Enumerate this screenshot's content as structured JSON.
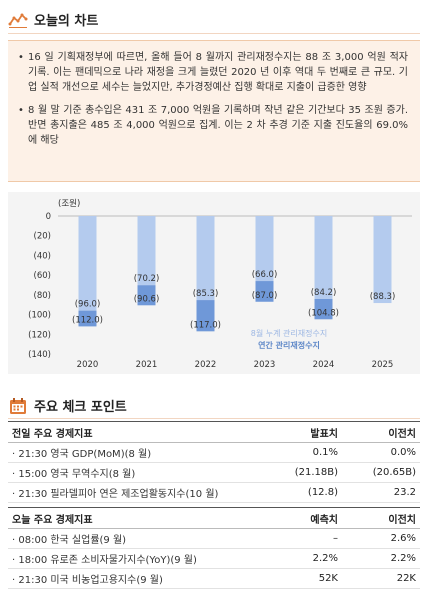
{
  "chart_section": {
    "title": "오늘의 차트",
    "icon": "line-chart-icon",
    "bullets": [
      "16 일 기획재정부에 따르면, 올해 들어 8 월까지 관리재정수지는 88 조 3,000 억원 적자 기록. 이는 팬데믹으로 나라 재정을 크게 늘렸던 2020 년 이후 역대 두 번째로 큰 규모. 기업 실적 개선으로 세수는 늘었지만, 추가경정예산 집행 확대로 지출이 급증한 영향",
      "8 월 말 기준 총수입은 431 조 7,000 억원을 기록하며 작년 같은 기간보다 35 조원 증가. 반면 총지출은 485 조 4,000 억원으로 집계. 이는 2 차 추경 기준 지출 진도율의 69.0%에 해당"
    ]
  },
  "chart_data": {
    "type": "bar",
    "unit_label": "(조원)",
    "categories": [
      "2020",
      "2021",
      "2022",
      "2023",
      "2024",
      "2025"
    ],
    "series": [
      {
        "name": "연간 관리재정수지",
        "values": [
          -112.0,
          -90.6,
          -117.0,
          -87.0,
          -104.8,
          null
        ],
        "color": "#6f98d8"
      },
      {
        "name": "8월 누계 관리재정수지",
        "values": [
          -96.0,
          -70.2,
          -85.3,
          -66.0,
          -84.2,
          -88.3
        ],
        "color": "#b4cbee"
      }
    ],
    "data_labels": [
      {
        "category": "2020",
        "top": "(96.0)",
        "bottom": "(112.0)"
      },
      {
        "category": "2021",
        "top": "(70.2)",
        "bottom": "(90.6)"
      },
      {
        "category": "2022",
        "top": "(85.3)",
        "bottom": "(117.0)"
      },
      {
        "category": "2023",
        "top": "(66.0)",
        "bottom": "(87.0)"
      },
      {
        "category": "2024",
        "top": "(84.2)",
        "bottom": "(104.8)"
      },
      {
        "category": "2025",
        "top": "(88.3)",
        "bottom": ""
      }
    ],
    "yticks": [
      "0",
      "(20)",
      "(40)",
      "(60)",
      "(80)",
      "(100)",
      "(120)",
      "(140)"
    ],
    "ylim": [
      -140,
      0
    ],
    "legend_placement": "inside-bottom-right",
    "grid": false
  },
  "check_section": {
    "title": "주요 체크 포인트",
    "icon": "calendar-icon",
    "prev_table": {
      "headers": [
        "전일 주요 경제지표",
        "발표치",
        "이전치"
      ],
      "rows": [
        [
          "· 21:30 영국 GDP(MoM)(8 월)",
          "0.1%",
          "0.0%"
        ],
        [
          "· 15:00 영국 무역수지(8 월)",
          "(21.18B)",
          "(20.65B)"
        ],
        [
          "· 21:30 필라델피아 연은 제조업활동지수(10 월)",
          "(12.8)",
          "23.2"
        ]
      ]
    },
    "today_table": {
      "headers": [
        "오늘 주요 경제지표",
        "예측치",
        "이전치"
      ],
      "rows": [
        [
          "· 08:00 한국 실업률(9 월)",
          "–",
          "2.6%"
        ],
        [
          "· 18:00 유로존 소비자물가지수(YoY)(9 월)",
          "2.2%",
          "2.2%"
        ],
        [
          "· 21:30 미국 비농업고용지수(9 월)",
          "52K",
          "22K"
        ]
      ]
    }
  },
  "colors": {
    "accent": "#e07b39",
    "box_bg": "#fdf1e7",
    "bar_dark": "#6f98d8",
    "bar_light": "#b4cbee"
  }
}
